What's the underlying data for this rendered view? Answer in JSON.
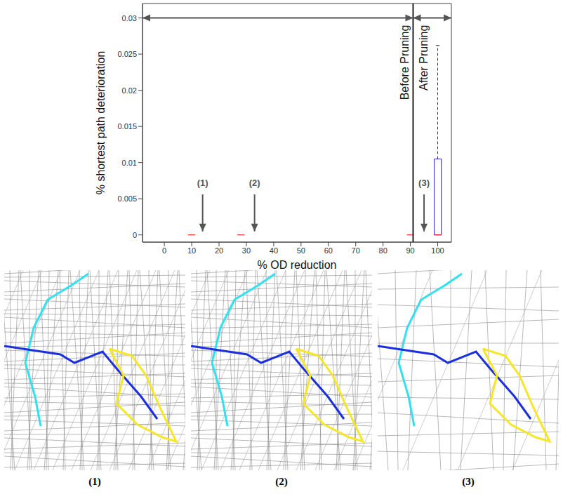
{
  "chart_data": {
    "type": "box",
    "xlabel": "% OD reduction",
    "ylabel": "% shortest path deterioration",
    "xlim": [
      -8,
      105
    ],
    "xticks": [
      0,
      10,
      20,
      30,
      40,
      50,
      60,
      70,
      80,
      90,
      100
    ],
    "ylim": [
      -0.001,
      0.032
    ],
    "yticks": [
      0,
      0.005,
      0.01,
      0.015,
      0.02,
      0.025,
      0.03
    ],
    "grid": false,
    "color": "#2b2bd1",
    "boxes": [
      {
        "x": 10,
        "whisker_low": 0,
        "q1": 0,
        "median": 0,
        "q3": 0,
        "whisker_high": 0
      },
      {
        "x": 28,
        "whisker_low": 0,
        "q1": 0,
        "median": 0,
        "q3": 0,
        "whisker_high": 0
      },
      {
        "x": 90,
        "whisker_low": 0,
        "q1": 0,
        "median": 0,
        "q3": 0,
        "whisker_high": 0
      },
      {
        "x": 100,
        "whisker_low": 0,
        "q1": 0,
        "median": 0,
        "q3": 0.0105,
        "whisker_high": 0.0262
      }
    ],
    "threshold": {
      "x": 91,
      "labels": [
        "Before Pruning",
        "After Pruning"
      ]
    },
    "annotations": [
      {
        "text": "(1)",
        "x": 14
      },
      {
        "text": "(2)",
        "x": 33
      },
      {
        "text": "(3)",
        "x": 95
      }
    ]
  },
  "panels": [
    {
      "label": "(1)"
    },
    {
      "label": "(2)"
    },
    {
      "label": "(3)"
    }
  ]
}
